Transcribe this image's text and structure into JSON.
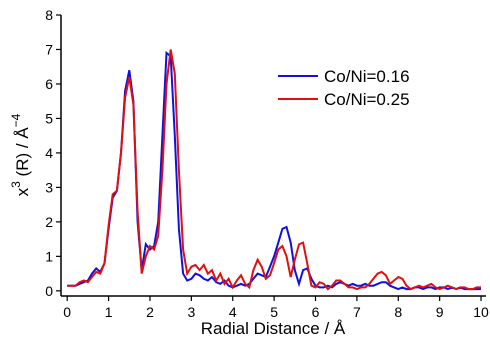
{
  "chart_data": {
    "type": "line",
    "xlabel": "Radial Distance / Å",
    "ylabel": [
      "x",
      "3",
      " (R) / Å",
      "−4"
    ],
    "x": [
      0,
      0.1,
      0.2,
      0.3,
      0.4,
      0.5,
      0.6,
      0.7,
      0.8,
      0.9,
      1,
      1.1,
      1.2,
      1.3,
      1.4,
      1.5,
      1.6,
      1.7,
      1.8,
      1.9,
      2,
      2.1,
      2.2,
      2.3,
      2.4,
      2.5,
      2.6,
      2.7,
      2.8,
      2.9,
      3,
      3.1,
      3.2,
      3.3,
      3.4,
      3.5,
      3.6,
      3.7,
      3.8,
      3.9,
      4,
      4.1,
      4.2,
      4.3,
      4.4,
      4.5,
      4.6,
      4.7,
      4.8,
      4.9,
      5,
      5.1,
      5.2,
      5.3,
      5.4,
      5.5,
      5.6,
      5.7,
      5.8,
      5.9,
      6,
      6.1,
      6.2,
      6.3,
      6.4,
      6.5,
      6.6,
      6.7,
      6.8,
      6.9,
      7,
      7.1,
      7.2,
      7.3,
      7.4,
      7.5,
      7.6,
      7.7,
      7.8,
      7.9,
      8,
      8.1,
      8.2,
      8.3,
      8.4,
      8.5,
      8.6,
      8.7,
      8.8,
      8.9,
      9,
      9.1,
      9.2,
      9.3,
      9.4,
      9.5,
      9.6,
      9.7,
      9.8,
      9.9,
      10
    ],
    "series": [
      {
        "name": "Co/Ni=0.16",
        "color": "#1010e0",
        "values": [
          0.15,
          0.15,
          0.15,
          0.2,
          0.25,
          0.3,
          0.5,
          0.65,
          0.55,
          0.8,
          1.8,
          2.7,
          2.9,
          4.0,
          5.8,
          6.4,
          5.5,
          2.0,
          0.6,
          1.35,
          1.2,
          1.3,
          2.0,
          4.5,
          6.9,
          6.8,
          4.5,
          1.8,
          0.5,
          0.3,
          0.35,
          0.5,
          0.45,
          0.35,
          0.3,
          0.4,
          0.25,
          0.2,
          0.3,
          0.15,
          0.1,
          0.15,
          0.2,
          0.15,
          0.2,
          0.35,
          0.5,
          0.45,
          0.4,
          0.7,
          1.0,
          1.4,
          1.8,
          1.85,
          1.4,
          0.6,
          0.2,
          0.6,
          0.65,
          0.35,
          0.15,
          0.1,
          0.1,
          0.15,
          0.1,
          0.2,
          0.25,
          0.2,
          0.15,
          0.2,
          0.15,
          0.15,
          0.2,
          0.15,
          0.15,
          0.2,
          0.25,
          0.25,
          0.15,
          0.1,
          0.05,
          0.1,
          0.05,
          0.05,
          0.1,
          0.1,
          0.05,
          0.1,
          0.1,
          0.05,
          0.1,
          0.1,
          0.05,
          0.1,
          0.05,
          0.1,
          0.05,
          0.05,
          0.05,
          0.05,
          0.05
        ]
      },
      {
        "name": "Co/Ni=0.25",
        "color": "#e01010",
        "values": [
          0.15,
          0.15,
          0.15,
          0.25,
          0.3,
          0.25,
          0.4,
          0.55,
          0.5,
          0.8,
          1.9,
          2.8,
          2.9,
          4.0,
          5.6,
          6.2,
          5.4,
          2.3,
          0.5,
          1.0,
          1.3,
          1.2,
          1.6,
          3.5,
          6.0,
          7.0,
          6.3,
          3.5,
          1.2,
          0.5,
          0.7,
          0.75,
          0.6,
          0.75,
          0.5,
          0.6,
          0.3,
          0.5,
          0.2,
          0.35,
          0.1,
          0.3,
          0.45,
          0.2,
          0.1,
          0.6,
          0.9,
          0.7,
          0.35,
          0.45,
          0.8,
          1.2,
          1.3,
          1.0,
          0.4,
          0.9,
          1.35,
          1.4,
          0.8,
          0.15,
          0.1,
          0.25,
          0.2,
          0.05,
          0.15,
          0.3,
          0.3,
          0.2,
          0.1,
          0.1,
          0.05,
          0.1,
          0.1,
          0.2,
          0.35,
          0.5,
          0.55,
          0.45,
          0.2,
          0.3,
          0.4,
          0.35,
          0.15,
          0.05,
          0.1,
          0.15,
          0.1,
          0.15,
          0.2,
          0.1,
          0.05,
          0.1,
          0.15,
          0.1,
          0.05,
          0.1,
          0.1,
          0.05,
          0.05,
          0.1,
          0.1
        ]
      }
    ],
    "xlim": [
      -0.15,
      10.12
    ],
    "ylim": [
      -0.15,
      8
    ],
    "xticks": [
      0,
      1,
      2,
      3,
      4,
      5,
      6,
      7,
      8,
      9,
      10
    ],
    "yticks": [
      0,
      1,
      2,
      3,
      4,
      5,
      6,
      7,
      8
    ],
    "legend": "upper-right"
  }
}
